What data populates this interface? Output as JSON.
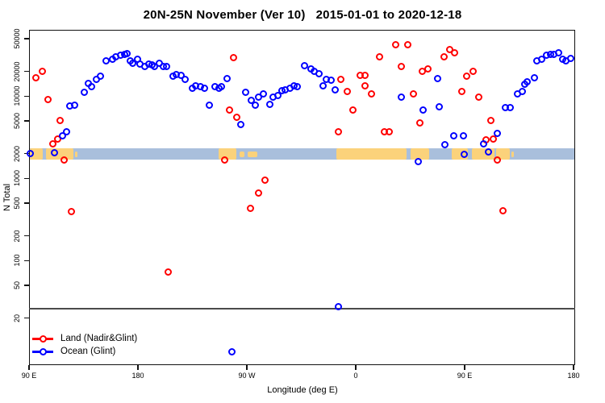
{
  "title": "20N-25N November (Ver 10)   2015-01-01 to 2020-12-18",
  "axes": {
    "y_label": "N Total",
    "x_label": "Longitude (deg E)",
    "y_scale": "log",
    "y_ticks": [
      20,
      50,
      100,
      200,
      500,
      1000,
      2000,
      5000,
      10000,
      20000,
      50000
    ],
    "x_ticks": [
      {
        "deg": 90,
        "label": "90 E"
      },
      {
        "deg": 180,
        "label": "180"
      },
      {
        "deg": 270,
        "label": "90 W"
      },
      {
        "deg": 360,
        "label": "0"
      },
      {
        "deg": 450,
        "label": "90 E"
      },
      {
        "deg": 540,
        "label": "180"
      }
    ],
    "x_axis_note": "x axis wraps 450 degrees of longitude: 90E to 180, 90W, 0, 90E, 180"
  },
  "legend": {
    "items": [
      {
        "label": "Land (Nadir&Glint)",
        "color": "#ff0000"
      },
      {
        "label": "Ocean (Glint)",
        "color": "#0000ff"
      }
    ]
  },
  "colors": {
    "land_series": "#ff0000",
    "ocean_series": "#0000ff",
    "map_ocean": "#a9bfdc",
    "map_land": "#fbd27b",
    "reference_line": "#4a4a4a"
  },
  "map_band": {
    "center_value": 2000,
    "ocean_color": "#a9bfdc",
    "land_color": "#fbd27b",
    "land_patches_deg": [
      {
        "from": 90,
        "to": 100.7
      },
      {
        "from": 103.3,
        "to": 126
      },
      {
        "from": 127.5,
        "to": 129.5,
        "thin": true
      },
      {
        "from": 246,
        "to": 260.7
      },
      {
        "from": 263.3,
        "to": 267.3,
        "thin": true
      },
      {
        "from": 270,
        "to": 278,
        "thin": true
      },
      {
        "from": 343.3,
        "to": 401.3
      },
      {
        "from": 404.7,
        "to": 420
      },
      {
        "from": 438.7,
        "to": 452
      },
      {
        "from": 455,
        "to": 474
      },
      {
        "from": 475.5,
        "to": 486.7
      },
      {
        "from": 488,
        "to": 490,
        "thin": true
      }
    ]
  },
  "reference_line": {
    "value": 27
  },
  "chart_data": {
    "type": "scatter",
    "title": "20N-25N November (Ver 10)   2015-01-01 to 2020-12-18",
    "xlabel": "Longitude (deg E)",
    "ylabel": "N Total",
    "xlim_deg": [
      90,
      540
    ],
    "ylim": [
      6,
      64000
    ],
    "grid": false,
    "legend_position": "bottom-left",
    "series": [
      {
        "name": "Land (Nadir&Glint)",
        "color": "#ff0000",
        "marker": "open-circle",
        "points": [
          [
            95.3,
            17300
          ],
          [
            100,
            20700
          ],
          [
            104.7,
            9400
          ],
          [
            114.7,
            5200
          ],
          [
            108.7,
            2700
          ],
          [
            113.3,
            3050
          ],
          [
            118,
            1700
          ],
          [
            124,
            400
          ],
          [
            204,
            75
          ],
          [
            250.7,
            1700
          ],
          [
            254.7,
            7000
          ],
          [
            258,
            29800
          ],
          [
            261.3,
            5600
          ],
          [
            272,
            440
          ],
          [
            279.3,
            680
          ],
          [
            284,
            980
          ],
          [
            345.3,
            3750
          ],
          [
            347.3,
            16500
          ],
          [
            352,
            11600
          ],
          [
            357.3,
            7000
          ],
          [
            363.3,
            18500
          ],
          [
            366.7,
            13800
          ],
          [
            367.3,
            18500
          ],
          [
            372,
            11000
          ],
          [
            378.7,
            30500
          ],
          [
            383.3,
            3800
          ],
          [
            386.7,
            3750
          ],
          [
            392,
            42700
          ],
          [
            397.3,
            23300
          ],
          [
            402,
            42700
          ],
          [
            407.3,
            11000
          ],
          [
            412,
            4800
          ],
          [
            414,
            20700
          ],
          [
            418.7,
            21800
          ],
          [
            432,
            30500
          ],
          [
            436.7,
            38100
          ],
          [
            441.3,
            34100
          ],
          [
            446.7,
            11600
          ],
          [
            451.3,
            18100
          ],
          [
            456,
            20700
          ],
          [
            461.3,
            9900
          ],
          [
            466.7,
            3000
          ],
          [
            471.3,
            5200
          ],
          [
            473.3,
            3050
          ],
          [
            476,
            1700
          ],
          [
            481.3,
            410
          ]
        ]
      },
      {
        "name": "Ocean (Glint)",
        "color": "#0000ff",
        "marker": "open-circle",
        "points": [
          [
            90,
            2050
          ],
          [
            110,
            2100
          ],
          [
            116.7,
            3400
          ],
          [
            120,
            3750
          ],
          [
            123.3,
            7700
          ],
          [
            126.7,
            8000
          ],
          [
            134.7,
            11300
          ],
          [
            138,
            14700
          ],
          [
            141.3,
            13200
          ],
          [
            144.7,
            16500
          ],
          [
            148,
            18100
          ],
          [
            153.3,
            27200
          ],
          [
            158,
            28500
          ],
          [
            161.3,
            30500
          ],
          [
            164.7,
            31900
          ],
          [
            168,
            32700
          ],
          [
            170,
            33400
          ],
          [
            173.3,
            27200
          ],
          [
            175.3,
            25900
          ],
          [
            178.7,
            28500
          ],
          [
            181.3,
            25400
          ],
          [
            184.7,
            23300
          ],
          [
            188,
            25400
          ],
          [
            191.3,
            24300
          ],
          [
            193.3,
            23300
          ],
          [
            196.7,
            25900
          ],
          [
            200,
            23300
          ],
          [
            202.7,
            23300
          ],
          [
            208,
            18100
          ],
          [
            211.3,
            18900
          ],
          [
            214.7,
            18500
          ],
          [
            218,
            16500
          ],
          [
            224,
            12900
          ],
          [
            227.3,
            13800
          ],
          [
            230.7,
            13200
          ],
          [
            234,
            12900
          ],
          [
            238,
            8000
          ],
          [
            242.7,
            13200
          ],
          [
            246,
            12900
          ],
          [
            248,
            13200
          ],
          [
            252.7,
            16900
          ],
          [
            257.3,
            8
          ],
          [
            264,
            4650
          ],
          [
            268,
            11300
          ],
          [
            272.7,
            9000
          ],
          [
            276,
            8000
          ],
          [
            279.3,
            9900
          ],
          [
            282.7,
            11000
          ],
          [
            288,
            8200
          ],
          [
            291.3,
            9900
          ],
          [
            294.7,
            10500
          ],
          [
            298,
            11800
          ],
          [
            301.3,
            12300
          ],
          [
            304.7,
            12900
          ],
          [
            308,
            13800
          ],
          [
            311.3,
            13200
          ],
          [
            316.7,
            23800
          ],
          [
            322,
            21800
          ],
          [
            325.3,
            20300
          ],
          [
            328.7,
            19300
          ],
          [
            332,
            13800
          ],
          [
            335.3,
            16500
          ],
          [
            338.7,
            16100
          ],
          [
            342,
            12300
          ],
          [
            344.7,
            28
          ],
          [
            396.7,
            9900
          ],
          [
            410.7,
            1650
          ],
          [
            415.3,
            7000
          ],
          [
            427.3,
            16900
          ],
          [
            428,
            7600
          ],
          [
            432.7,
            2650
          ],
          [
            440,
            3400
          ],
          [
            448,
            3400
          ],
          [
            449.3,
            2000
          ],
          [
            464.7,
            2700
          ],
          [
            469.3,
            2150
          ],
          [
            476,
            3600
          ],
          [
            482.7,
            7450
          ],
          [
            486.7,
            7450
          ],
          [
            492.7,
            11000
          ],
          [
            496.7,
            11600
          ],
          [
            499.3,
            14400
          ],
          [
            501.3,
            15400
          ],
          [
            506.7,
            17300
          ],
          [
            509.3,
            27200
          ],
          [
            513.3,
            28500
          ],
          [
            516.7,
            31900
          ],
          [
            520,
            32700
          ],
          [
            523.3,
            32700
          ],
          [
            526.7,
            34100
          ],
          [
            530,
            28500
          ],
          [
            533.3,
            27200
          ],
          [
            536.7,
            29200
          ]
        ]
      }
    ]
  }
}
